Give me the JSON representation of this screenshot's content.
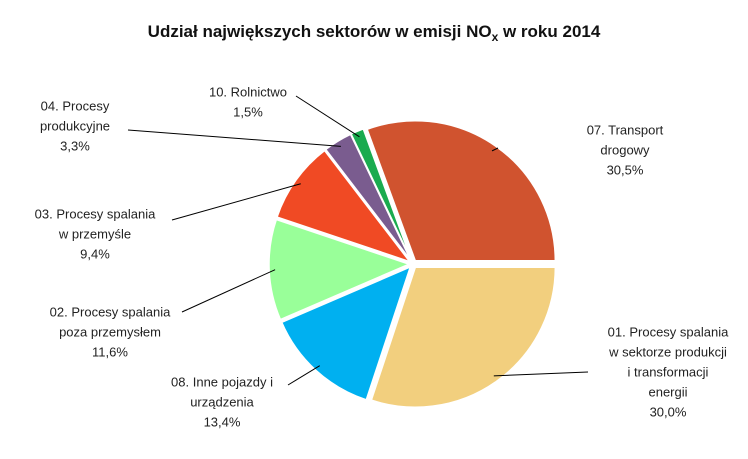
{
  "chart_data": {
    "type": "pie",
    "title": [
      "Udział największych sektorów w emisji NO",
      "x",
      " w roku 2014"
    ],
    "categories": [
      [
        "01. Procesy spalania",
        "w sektorze produkcji",
        "i transformacji",
        "energii"
      ],
      [
        "08. Inne pojazdy i",
        "urządzenia"
      ],
      [
        "02. Procesy spalania",
        "poza przemysłem"
      ],
      [
        "03. Procesy spalania",
        "w przemyśle"
      ],
      [
        "04. Procesy",
        "produkcyjne"
      ],
      [
        "10. Rolnictwo"
      ],
      [
        "07. Transport",
        "drogowy"
      ]
    ],
    "values": [
      30.0,
      13.4,
      11.6,
      9.4,
      3.3,
      1.5,
      30.5
    ],
    "value_labels": [
      "30,0%",
      "13,4%",
      "11,6%",
      "9,4%",
      "3,3%",
      "1,5%",
      "30,5%"
    ],
    "colors": [
      "#f2cf7e",
      "#00b0f0",
      "#99ff99",
      "#f04a24",
      "#7a5c8f",
      "#1aab4f",
      "#d0532f"
    ]
  }
}
